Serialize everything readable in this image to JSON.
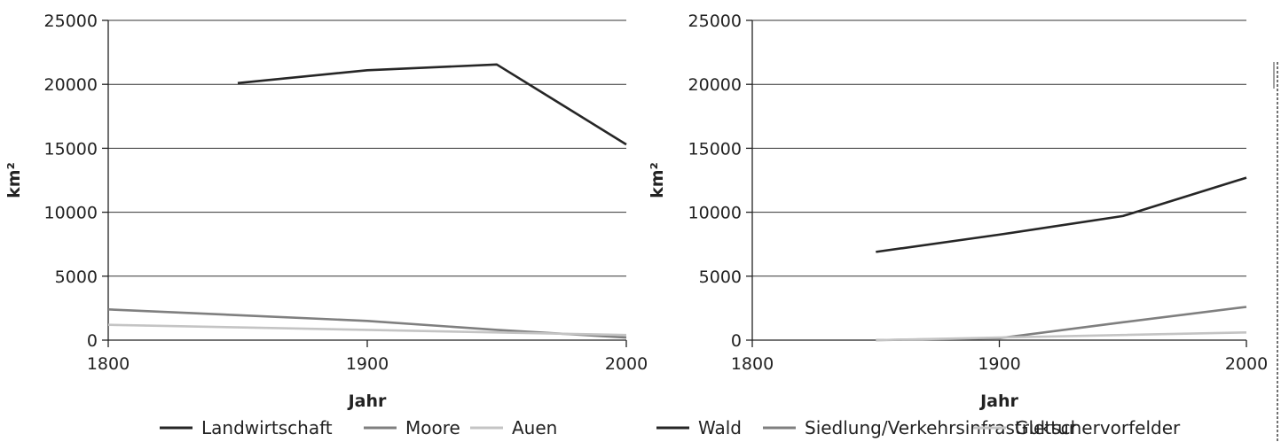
{
  "chart_data": [
    {
      "type": "line",
      "title": "",
      "xlabel": "Jahr",
      "ylabel": "km²",
      "xlim": [
        1800,
        2000
      ],
      "ylim": [
        0,
        25000
      ],
      "x_ticks": [
        "1800",
        "1900",
        "2000"
      ],
      "y_ticks": [
        "0",
        "5000",
        "10000",
        "15000",
        "20000",
        "25000"
      ],
      "grid": "horizontal",
      "legend_position": "bottom",
      "series": [
        {
          "name": "Landwirtschaft",
          "color": "#262626",
          "points": [
            [
              1850,
              20100
            ],
            [
              1900,
              21100
            ],
            [
              1950,
              21550
            ],
            [
              2000,
              15300
            ]
          ]
        },
        {
          "name": "Moore",
          "color": "#7f7f7f",
          "points": [
            [
              1800,
              2400
            ],
            [
              1850,
              1950
            ],
            [
              1900,
              1500
            ],
            [
              1950,
              800
            ],
            [
              2000,
              200
            ]
          ]
        },
        {
          "name": "Auen",
          "color": "#c4c4c4",
          "points": [
            [
              1800,
              1200
            ],
            [
              1850,
              1000
            ],
            [
              1900,
              800
            ],
            [
              1950,
              600
            ],
            [
              2000,
              400
            ]
          ]
        }
      ]
    },
    {
      "type": "line",
      "title": "",
      "xlabel": "Jahr",
      "ylabel": "km²",
      "xlim": [
        1800,
        2000
      ],
      "ylim": [
        0,
        25000
      ],
      "x_ticks": [
        "1800",
        "1900",
        "2000"
      ],
      "y_ticks": [
        "0",
        "5000",
        "10000",
        "15000",
        "20000",
        "25000"
      ],
      "grid": "horizontal",
      "legend_position": "bottom",
      "series": [
        {
          "name": "Wald",
          "color": "#262626",
          "points": [
            [
              1850,
              6900
            ],
            [
              1900,
              8250
            ],
            [
              1950,
              9700
            ],
            [
              2000,
              12700
            ]
          ]
        },
        {
          "name": "Siedlung/Verkehrsinfrastruktur",
          "color": "#7f7f7f",
          "points": [
            [
              1850,
              0
            ],
            [
              1900,
              150
            ],
            [
              1950,
              1400
            ],
            [
              2000,
              2600
            ]
          ]
        },
        {
          "name": "Gletschervorfelder",
          "color": "#c4c4c4",
          "points": [
            [
              1850,
              0
            ],
            [
              1900,
              200
            ],
            [
              1950,
              400
            ],
            [
              2000,
              600
            ]
          ]
        }
      ]
    }
  ]
}
